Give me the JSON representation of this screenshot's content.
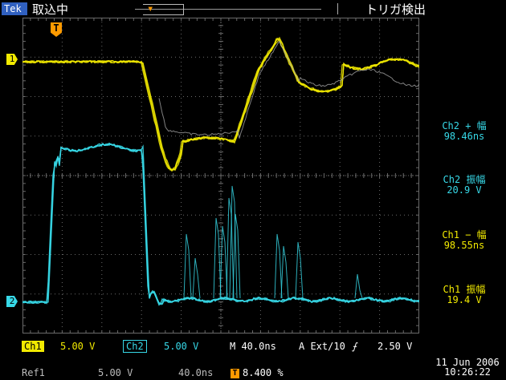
{
  "header": {
    "brand": "Tek",
    "acq_status": "取込中",
    "trigger_status": "トリガ検出",
    "trigger_marker": "T"
  },
  "graticule": {
    "divisions_x": 10,
    "divisions_y": 8
  },
  "channel_markers": {
    "ch1": "1",
    "ch2": "2"
  },
  "measurements": [
    {
      "label": "Ch2 + 幅",
      "value": "98.46ns",
      "color": "#37d9e8"
    },
    {
      "label": "Ch2 振幅",
      "value": "20.9 V",
      "color": "#37d9e8"
    },
    {
      "label": "Ch1 − 幅",
      "value": "98.55ns",
      "color": "#f2ea00"
    },
    {
      "label": "Ch1 振幅",
      "value": "19.4 V",
      "color": "#f2ea00"
    }
  ],
  "footer": {
    "ch1_label": "Ch1",
    "ch1_scale": "5.00 V",
    "ch2_label": "Ch2",
    "ch2_scale": "5.00 V",
    "timebase": "M 40.0ns",
    "trigger_src": "A Ext/10",
    "trigger_slope": "⨍",
    "trigger_level": "2.50 V",
    "ref_label": "Ref1",
    "ref_scale": "5.00 V",
    "ref_time": "40.0ns",
    "ref_marker": "T",
    "ref_pos": "8.400 %",
    "date": "11 Jun  2006",
    "time": "10:26:22"
  },
  "colors": {
    "ch1": "#f2ea00",
    "ch2": "#37d9e8",
    "ref": "#a0a0a0",
    "trigger": "#ff9a00",
    "grid": "#6a6a6a"
  }
}
